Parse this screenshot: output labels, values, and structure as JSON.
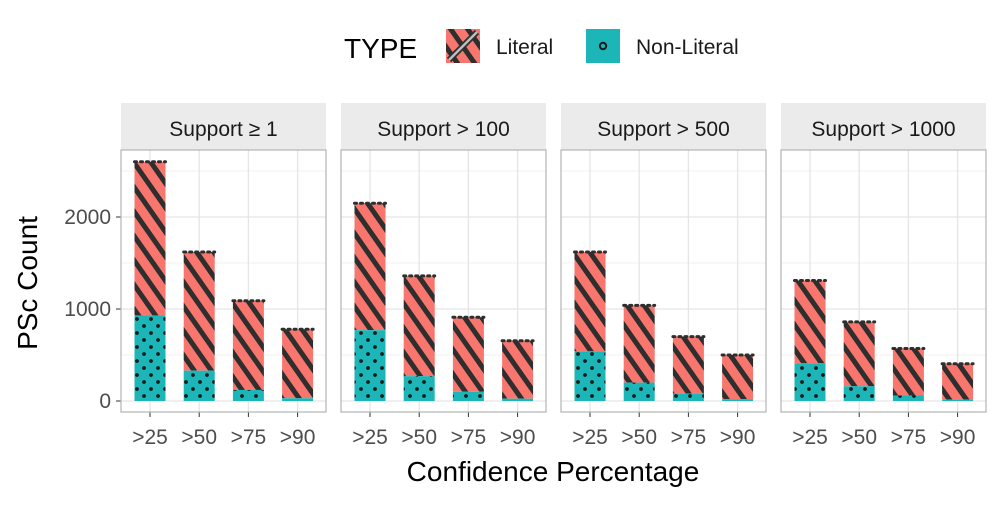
{
  "legend": {
    "title": "TYPE",
    "items": [
      {
        "label": "Literal",
        "color": "#F8766D",
        "pattern": "stripe"
      },
      {
        "label": "Non-Literal",
        "color": "#1DB6B8",
        "pattern": "dots"
      }
    ]
  },
  "axes": {
    "xlabel": "Confidence Percentage",
    "ylabel": "PSc Count",
    "yticks": [
      "0",
      "1000",
      "2000"
    ]
  },
  "colors": {
    "strip_bg": "#EBEBEB",
    "grid": "#E5E5E5",
    "panel_border": "#B3B3B3",
    "pattern_ink": "#2E2E2E"
  },
  "chart_data": {
    "type": "bar",
    "stacked": true,
    "categories": [
      ">25",
      ">50",
      ">75",
      ">90"
    ],
    "ylim": [
      0,
      2750
    ],
    "grid": true,
    "legend_position": "top",
    "facets": [
      {
        "title": "Support  ≥ 1",
        "series": [
          {
            "name": "Non-Literal",
            "values": [
              930,
              330,
              120,
              30
            ]
          },
          {
            "name": "Literal",
            "values": [
              1670,
              1290,
              970,
              750
            ]
          }
        ]
      },
      {
        "title": "Support  > 100",
        "series": [
          {
            "name": "Non-Literal",
            "values": [
              770,
              270,
              100,
              25
            ]
          },
          {
            "name": "Literal",
            "values": [
              1380,
              1090,
              810,
              630
            ]
          }
        ]
      },
      {
        "title": "Support  > 500",
        "series": [
          {
            "name": "Non-Literal",
            "values": [
              540,
              200,
              80,
              20
            ]
          },
          {
            "name": "Literal",
            "values": [
              1080,
              840,
              620,
              480
            ]
          }
        ]
      },
      {
        "title": "Support  > 1000",
        "series": [
          {
            "name": "Non-Literal",
            "values": [
              410,
              160,
              60,
              15
            ]
          },
          {
            "name": "Literal",
            "values": [
              900,
              700,
              510,
              390
            ]
          }
        ]
      }
    ]
  }
}
